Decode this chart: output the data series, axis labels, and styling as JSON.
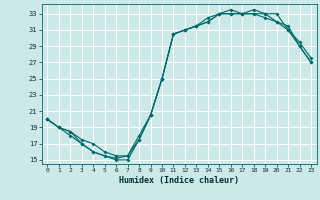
{
  "xlabel": "Humidex (Indice chaleur)",
  "bg_color": "#cce8e8",
  "grid_color": "#ffffff",
  "line_color": "#006868",
  "xlim": [
    -0.5,
    23.5
  ],
  "ylim": [
    14.5,
    34.2
  ],
  "yticks": [
    15,
    17,
    19,
    21,
    23,
    25,
    27,
    29,
    31,
    33
  ],
  "xticks": [
    0,
    1,
    2,
    3,
    4,
    5,
    6,
    7,
    8,
    9,
    10,
    11,
    12,
    13,
    14,
    15,
    16,
    17,
    18,
    19,
    20,
    21,
    22,
    23
  ],
  "line1_x": [
    0,
    1,
    2,
    3,
    4,
    5,
    6,
    7,
    8,
    9,
    10,
    11,
    12,
    13,
    14,
    15,
    16,
    17,
    18,
    19,
    20,
    21,
    22,
    23
  ],
  "line1_y": [
    20,
    19,
    18,
    17,
    16,
    15.5,
    15,
    15,
    17.5,
    20.5,
    25,
    30.5,
    31,
    31.5,
    32,
    33,
    33,
    33,
    33,
    33,
    32,
    31.5,
    29,
    27
  ],
  "line2_x": [
    0,
    1,
    2,
    3,
    4,
    5,
    6,
    7,
    8,
    9,
    10,
    11,
    12,
    13,
    14,
    15,
    16,
    17,
    18,
    19,
    20,
    21,
    22,
    23
  ],
  "line2_y": [
    20,
    19,
    18.5,
    17,
    16,
    15.5,
    15.2,
    15.5,
    17.5,
    20.5,
    25,
    30.5,
    31,
    31.5,
    32,
    33,
    33,
    33,
    33,
    32.5,
    32,
    31,
    29,
    27
  ],
  "line3_x": [
    0,
    1,
    2,
    3,
    4,
    5,
    6,
    7,
    8,
    9,
    10,
    11,
    12,
    13,
    14,
    15,
    16,
    17,
    18,
    19,
    20,
    21,
    22,
    23
  ],
  "line3_y": [
    20,
    19,
    18.5,
    17.5,
    17,
    16,
    15.5,
    15.5,
    18,
    20.5,
    25,
    30.5,
    31,
    31.5,
    32.5,
    33,
    33.5,
    33,
    33.5,
    33,
    33,
    31,
    29.5,
    27.5
  ]
}
